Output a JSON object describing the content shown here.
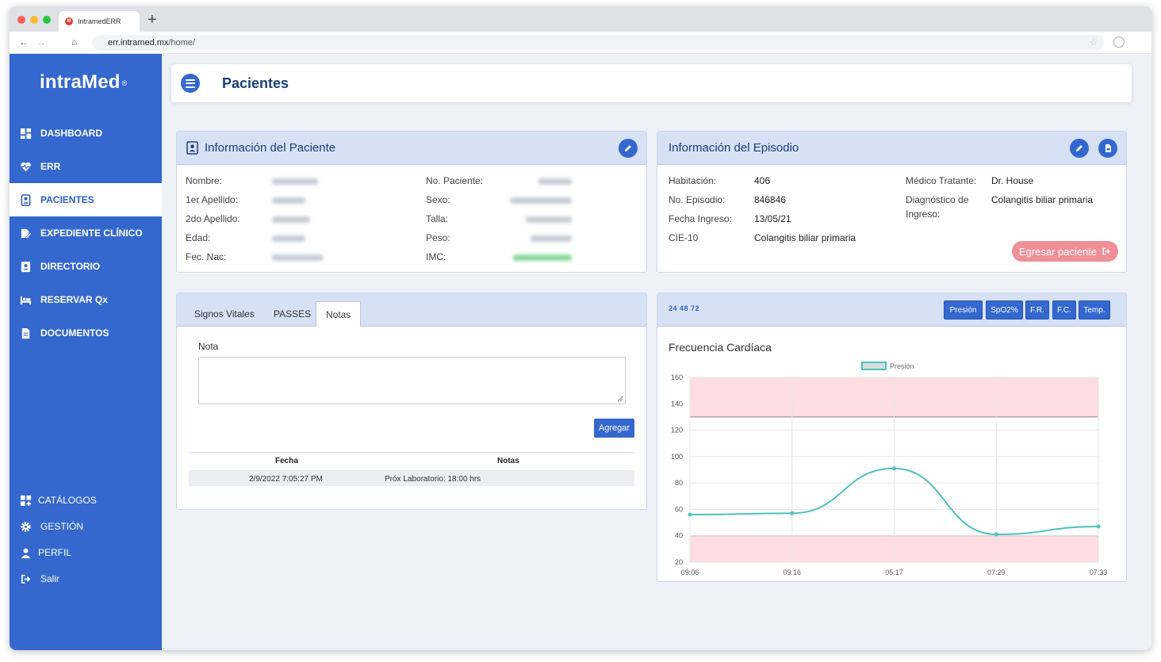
{
  "browser": {
    "tab_title": "IntramedERR",
    "url_domain": "err.intramed.mx",
    "url_path": "/home/"
  },
  "sidebar": {
    "logo": "intraMed",
    "logo_mark": "®",
    "items": [
      {
        "label": "DASHBOARD",
        "icon": "dashboard-icon"
      },
      {
        "label": "ERR",
        "icon": "heart-pulse-icon"
      },
      {
        "label": "PACIENTES",
        "icon": "patient-badge-icon",
        "active": true
      },
      {
        "label": "EXPEDIENTE CLÍNICO",
        "icon": "folder-pen-icon"
      },
      {
        "label": "DIRECTORIO",
        "icon": "contact-book-icon"
      },
      {
        "label": "RESERVAR Qx",
        "icon": "bed-icon"
      },
      {
        "label": "DOCUMENTOS",
        "icon": "document-icon"
      }
    ],
    "bottom_items": [
      {
        "label": "CATÁLOGOS",
        "icon": "catalog-grid-icon"
      },
      {
        "label": "GESTIÓN",
        "icon": "gear-icon"
      },
      {
        "label": "PERFIL",
        "icon": "user-icon"
      },
      {
        "label": "Salir",
        "icon": "logout-icon"
      }
    ]
  },
  "header": {
    "title": "Pacientes"
  },
  "patient_info": {
    "title": "Información del Paciente",
    "left_fields": [
      "Nombre:",
      "1er Apellido:",
      "2do Apellido:",
      "Edad:",
      "Fec. Nac:"
    ],
    "right_fields": [
      "No. Paciente:",
      "Sexo:",
      "Talla:",
      "Peso:",
      "IMC:"
    ]
  },
  "episode_info": {
    "title": "Información del Episodio",
    "fields": [
      {
        "label": "Habitación:",
        "value": "406"
      },
      {
        "label": "No. Episodio:",
        "value": "846846"
      },
      {
        "label": "Fecha Ingreso:",
        "value": "13/05/21"
      },
      {
        "label": "CIE-10",
        "value": "Colangitis biliar primaria"
      }
    ],
    "medico_label": "Médico Tratante:",
    "medico_value": "Dr. House",
    "diagnostico_label_1": "Diagnóstico de",
    "diagnostico_label_2": "Ingreso:",
    "diagnostico_value": "Colangitis biliar primaria",
    "egresar_label": "Egresar paciente"
  },
  "notes": {
    "tabs": [
      "Signos Vitales",
      "PASSES",
      "Notas"
    ],
    "active_tab": "Notas",
    "nota_label": "Nota",
    "nota_value": "",
    "agregar_label": "Agregar",
    "table_headers": [
      "Fecha",
      "Notas"
    ],
    "rows": [
      {
        "fecha": "2/9/2022 7:05:27 PM",
        "nota": "Próx Laboratorio: 18:00 hrs"
      }
    ]
  },
  "vitals": {
    "interval_icon_text": "24 48 72",
    "buttons": [
      "Presión",
      "SpO2%",
      "F.R.",
      "F.C.",
      "Temp."
    ]
  },
  "chart_data": {
    "type": "line",
    "title": "Frecuencia Cardíaca",
    "legend": [
      "Presión"
    ],
    "legend_position": "top",
    "x": [
      "09:06",
      "09:16",
      "05:17",
      "07:29",
      "07:33"
    ],
    "series": [
      {
        "name": "Presión",
        "values": [
          56,
          57,
          91,
          41,
          47
        ]
      }
    ],
    "ylim": [
      20,
      160
    ],
    "yticks": [
      20,
      40,
      60,
      80,
      100,
      120,
      140,
      160
    ],
    "bands": [
      {
        "from": 130,
        "to": 160
      },
      {
        "from": 20,
        "to": 40
      }
    ],
    "grid": true,
    "line_color": "#4fc1bd",
    "band_color": "#ffdde3"
  }
}
